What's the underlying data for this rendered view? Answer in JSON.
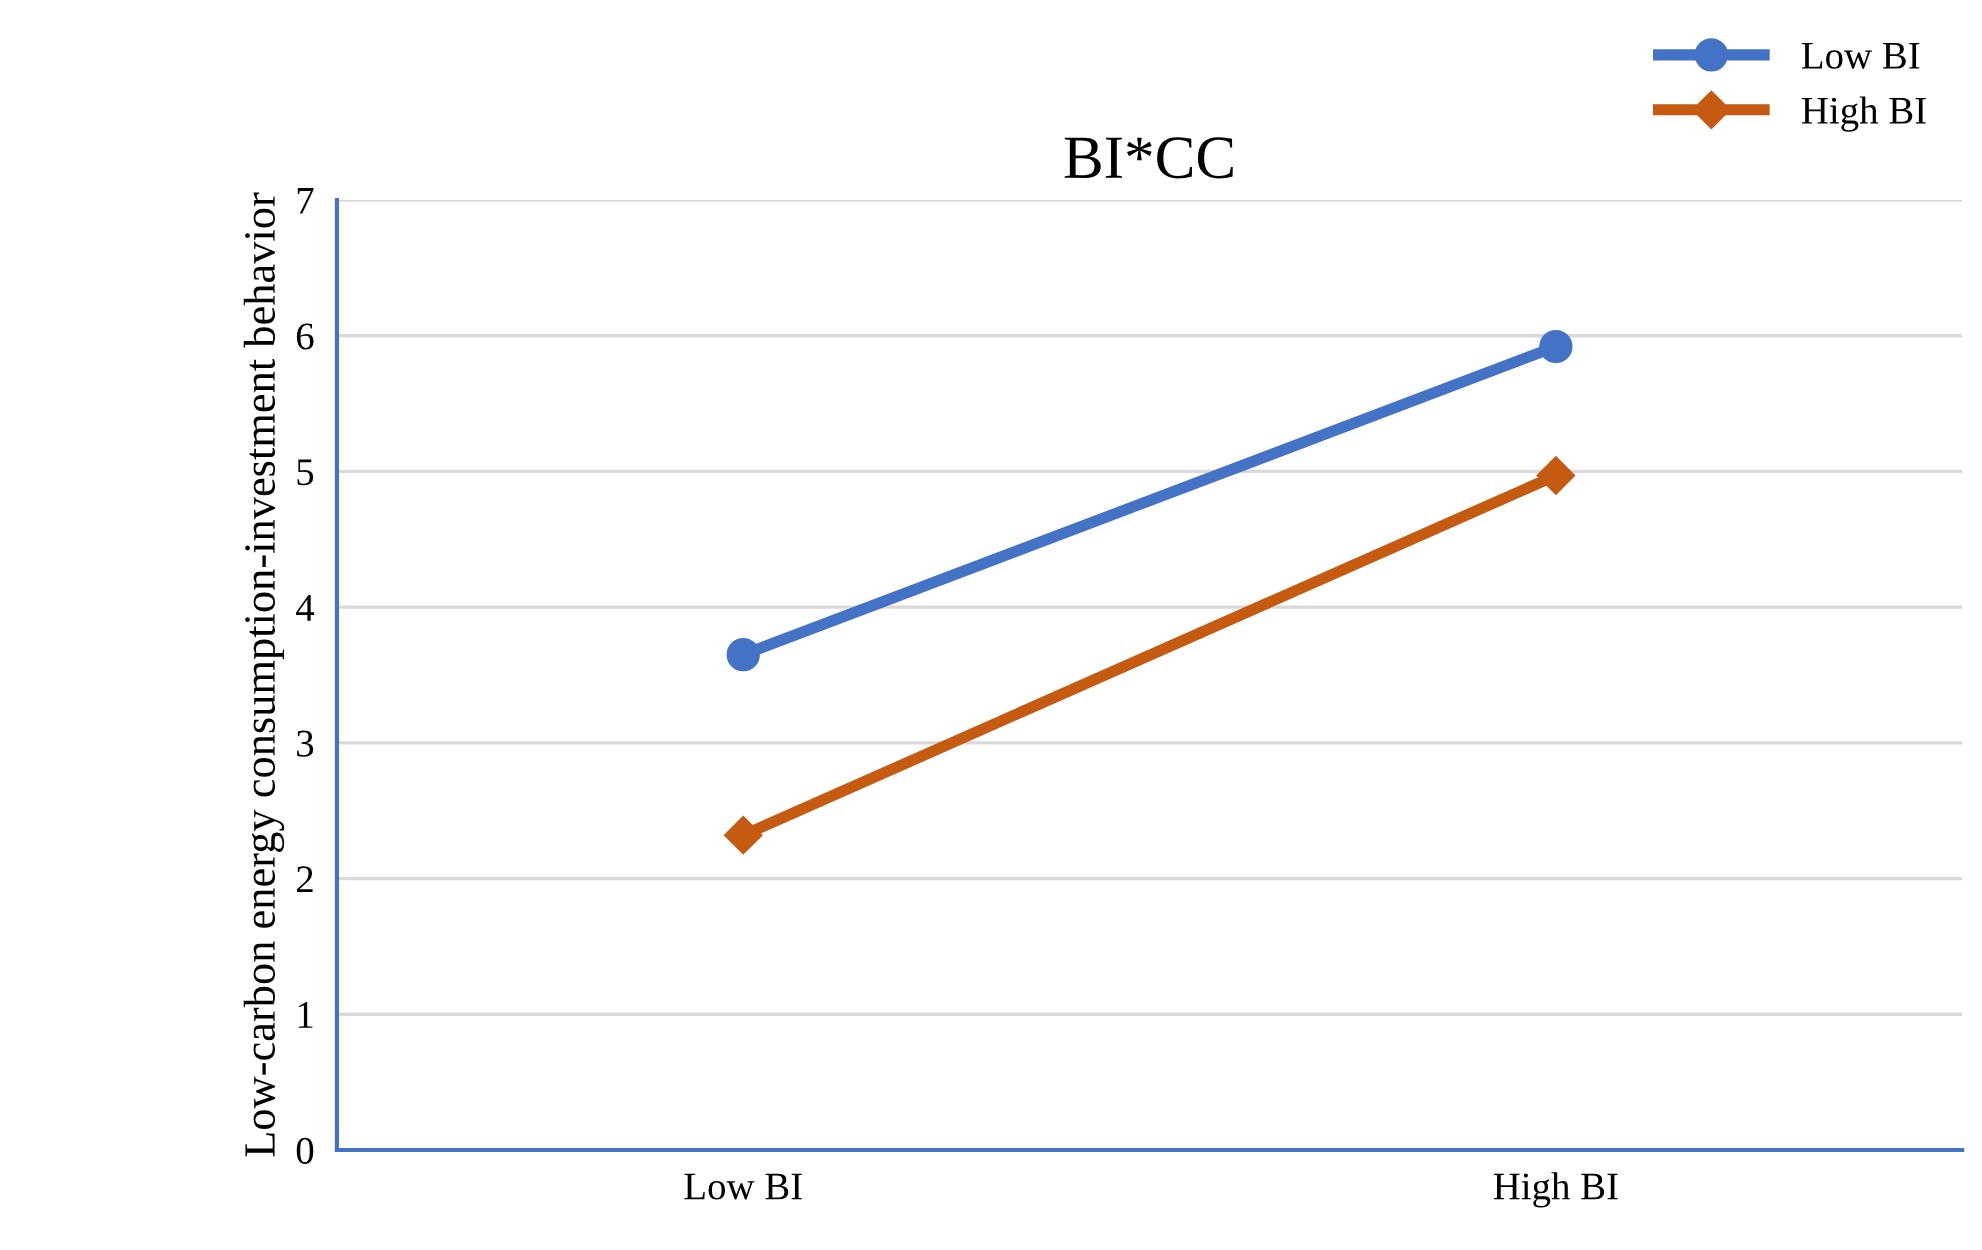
{
  "chart_data": {
    "type": "line",
    "title": "BI*CC",
    "ylabel": "Low-carbon energy consumption-investment behavior",
    "categories": [
      "Low BI",
      "High BI"
    ],
    "series": [
      {
        "name": "Low BI",
        "color": "#4472c4",
        "marker": "circle",
        "values": [
          3.65,
          5.92
        ]
      },
      {
        "name": "High BI",
        "color": "#c55a11",
        "marker": "diamond",
        "values": [
          2.32,
          4.97
        ]
      }
    ],
    "ylim": [
      0,
      7
    ],
    "yticks": [
      0,
      1,
      2,
      3,
      4,
      5,
      6,
      7
    ],
    "grid": "y",
    "legend": "top right",
    "line_style": "solid"
  }
}
